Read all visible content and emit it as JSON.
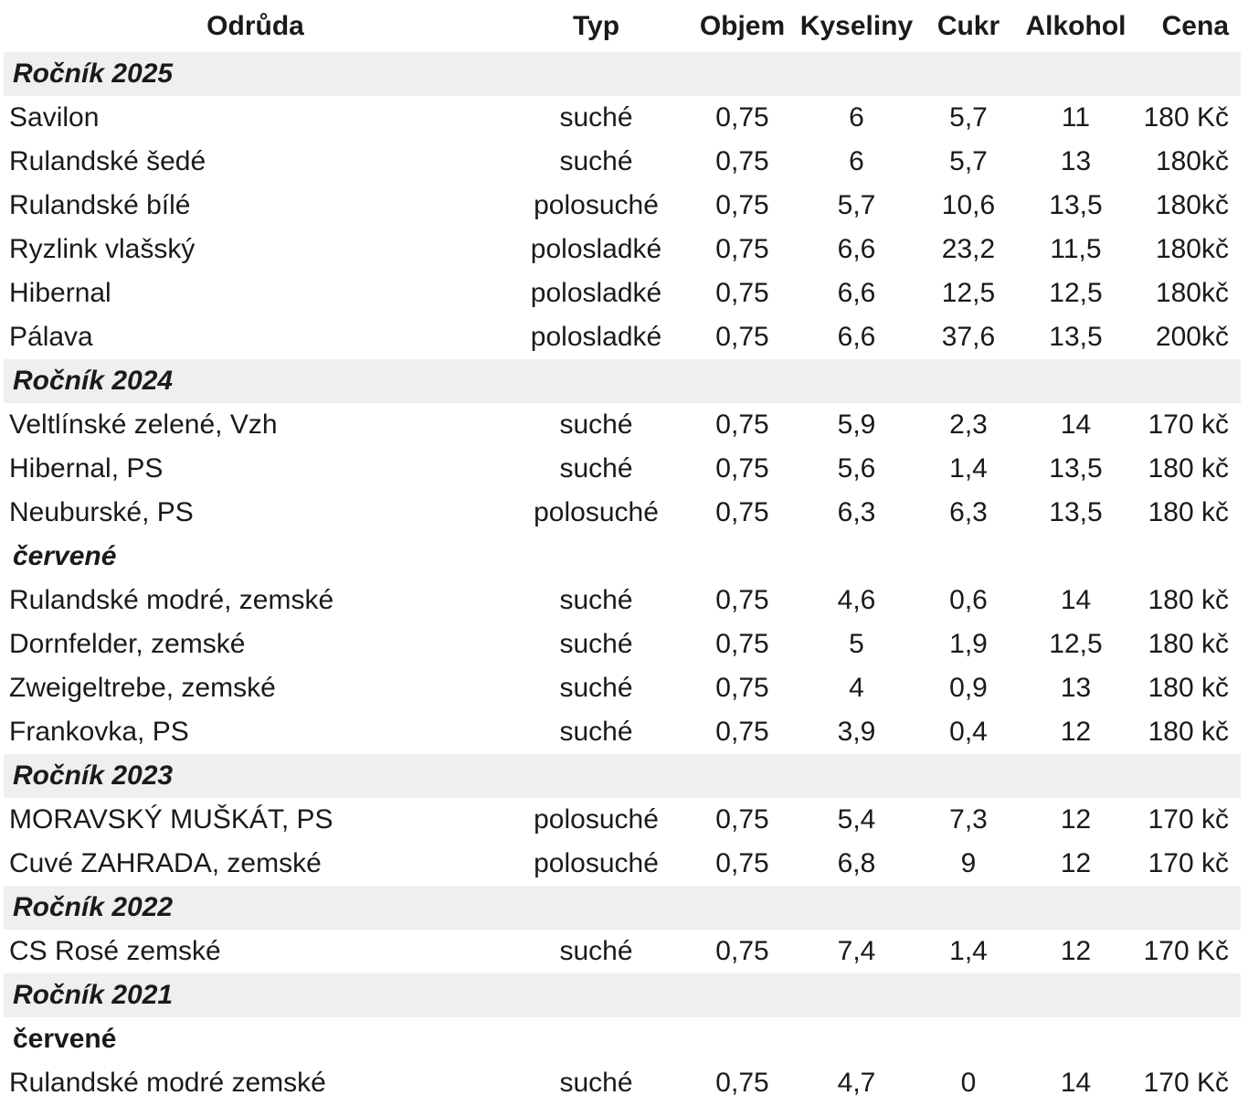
{
  "page": {
    "background_color": "#ffffff",
    "band_color": "#efefef",
    "text_color": "#1a1a1a"
  },
  "table": {
    "columns": [
      {
        "key": "name",
        "label": "Odrůda"
      },
      {
        "key": "typ",
        "label": "Typ"
      },
      {
        "key": "objem",
        "label": "Objem"
      },
      {
        "key": "kyseliny",
        "label": "Kyseliny"
      },
      {
        "key": "cukr",
        "label": "Cukr"
      },
      {
        "key": "alkohol",
        "label": "Alkohol"
      },
      {
        "key": "cena",
        "label": "Cena"
      }
    ],
    "rows": [
      {
        "type": "vintage",
        "label": "Ročník 2025"
      },
      {
        "type": "wine",
        "name": "Savilon",
        "typ": "suché",
        "objem": "0,75",
        "kyseliny": "6",
        "cukr": "5,7",
        "alkohol": "11",
        "cena": "180 Kč"
      },
      {
        "type": "wine",
        "name": "Rulandské šedé",
        "typ": "suché",
        "objem": "0,75",
        "kyseliny": "6",
        "cukr": "5,7",
        "alkohol": "13",
        "cena": "180kč"
      },
      {
        "type": "wine",
        "name": "Rulandské bílé",
        "typ": "polosuché",
        "objem": "0,75",
        "kyseliny": "5,7",
        "cukr": "10,6",
        "alkohol": "13,5",
        "cena": "180kč"
      },
      {
        "type": "wine",
        "name": "Ryzlink vlašský",
        "typ": "polosladké",
        "objem": "0,75",
        "kyseliny": "6,6",
        "cukr": "23,2",
        "alkohol": "11,5",
        "cena": "180kč"
      },
      {
        "type": "wine",
        "name": "Hibernal",
        "typ": "polosladké",
        "objem": "0,75",
        "kyseliny": "6,6",
        "cukr": "12,5",
        "alkohol": "12,5",
        "cena": "180kč"
      },
      {
        "type": "wine",
        "name": "Pálava",
        "typ": "polosladké",
        "objem": "0,75",
        "kyseliny": "6,6",
        "cukr": "37,6",
        "alkohol": "13,5",
        "cena": "200kč"
      },
      {
        "type": "vintage",
        "label": "Ročník 2024"
      },
      {
        "type": "wine",
        "name": "Veltlínské zelené, Vzh",
        "typ": "suché",
        "objem": "0,75",
        "kyseliny": "5,9",
        "cukr": "2,3",
        "alkohol": "14",
        "cena": "170 kč"
      },
      {
        "type": "wine",
        "name": "Hibernal, PS",
        "typ": "suché",
        "objem": "0,75",
        "kyseliny": "5,6",
        "cukr": "1,4",
        "alkohol": "13,5",
        "cena": "180 kč"
      },
      {
        "type": "wine",
        "name": "Neuburské, PS",
        "typ": "polosuché",
        "objem": "0,75",
        "kyseliny": "6,3",
        "cukr": "6,3",
        "alkohol": "13,5",
        "cena": "180 kč"
      },
      {
        "type": "subheader",
        "label": "červené",
        "italic": true
      },
      {
        "type": "wine",
        "name": "Rulandské modré, zemské",
        "typ": "suché",
        "objem": "0,75",
        "kyseliny": "4,6",
        "cukr": "0,6",
        "alkohol": "14",
        "cena": "180 kč"
      },
      {
        "type": "wine",
        "name": "Dornfelder, zemské",
        "typ": "suché",
        "objem": "0,75",
        "kyseliny": "5",
        "cukr": "1,9",
        "alkohol": "12,5",
        "cena": "180 kč"
      },
      {
        "type": "wine",
        "name": "Zweigeltrebe, zemské",
        "typ": "suché",
        "objem": "0,75",
        "kyseliny": "4",
        "cukr": "0,9",
        "alkohol": "13",
        "cena": "180 kč"
      },
      {
        "type": "wine",
        "name": "Frankovka, PS",
        "typ": "suché",
        "objem": "0,75",
        "kyseliny": "3,9",
        "cukr": "0,4",
        "alkohol": "12",
        "cena": "180 kč"
      },
      {
        "type": "vintage",
        "label": "Ročník 2023"
      },
      {
        "type": "wine",
        "name": "MORAVSKÝ MUŠKÁT, PS",
        "typ": "polosuché",
        "objem": "0,75",
        "kyseliny": "5,4",
        "cukr": "7,3",
        "alkohol": "12",
        "cena": "170 kč"
      },
      {
        "type": "wine",
        "name": "Cuvé ZAHRADA, zemské",
        "typ": "polosuché",
        "objem": "0,75",
        "kyseliny": "6,8",
        "cukr": "9",
        "alkohol": "12",
        "cena": "170 kč"
      },
      {
        "type": "vintage",
        "label": "Ročník 2022"
      },
      {
        "type": "wine",
        "name": "CS Rosé zemské",
        "typ": "suché",
        "objem": "0,75",
        "kyseliny": "7,4",
        "cukr": "1,4",
        "alkohol": "12",
        "cena": "170 Kč"
      },
      {
        "type": "vintage",
        "label": "Ročník 2021"
      },
      {
        "type": "subheader",
        "label": "červené",
        "italic": false
      },
      {
        "type": "wine",
        "name": "Rulandské modré zemské",
        "typ": "suché",
        "objem": "0,75",
        "kyseliny": "4,7",
        "cukr": "0",
        "alkohol": "14",
        "cena": "170 Kč"
      }
    ]
  }
}
